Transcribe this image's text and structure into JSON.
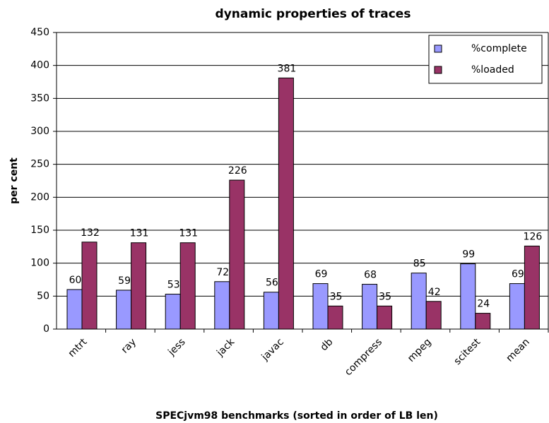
{
  "chart_data": {
    "type": "bar",
    "title": "dynamic properties of traces",
    "xlabel": "SPECjvm98 benchmarks (sorted in order of LB len)",
    "ylabel": "per cent",
    "categories": [
      "mtrt",
      "ray",
      "jess",
      "jack",
      "javac",
      "db",
      "compress",
      "mpeg",
      "scitest",
      "mean"
    ],
    "series": [
      {
        "name": "%complete",
        "color": "#9999ff",
        "values": [
          60,
          59,
          53,
          72,
          56,
          69,
          68,
          85,
          99,
          69
        ]
      },
      {
        "name": "%loaded",
        "color": "#993366",
        "values": [
          132,
          131,
          131,
          226,
          381,
          35,
          35,
          42,
          24,
          126
        ]
      }
    ],
    "ylim": [
      0,
      450
    ],
    "yticks": [
      0,
      50,
      100,
      150,
      200,
      250,
      300,
      350,
      400,
      450
    ],
    "grid": true,
    "legend": "upper right"
  }
}
